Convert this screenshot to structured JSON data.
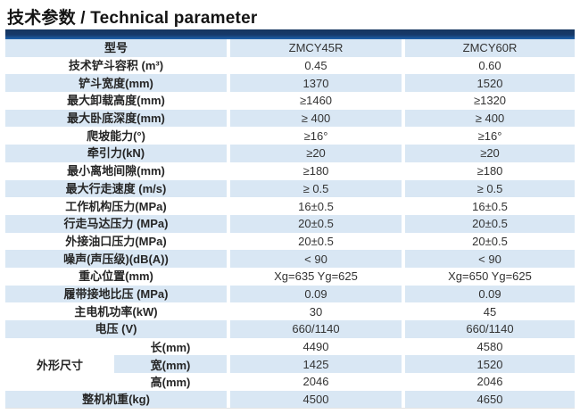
{
  "title": "技术参数 / Technical parameter",
  "colors": {
    "header_bar_navy": "#15355f",
    "header_bar_blue": "#1e63ae",
    "row_shade_blue": "#d9e7f4",
    "text": "#333333"
  },
  "table": {
    "header": {
      "model_label": "型号",
      "col1": "ZMCY45R",
      "col2": "ZMCY60R"
    },
    "rows": [
      {
        "label": "技术铲斗容积 (m³)",
        "v1": "0.45",
        "v2": "0.60"
      },
      {
        "label": "铲斗宽度(mm)",
        "v1": "1370",
        "v2": "1520"
      },
      {
        "label": "最大卸载高度(mm)",
        "v1": "≥1460",
        "v2": "≥1320"
      },
      {
        "label": "最大卧底深度(mm)",
        "v1": "≥ 400",
        "v2": "≥ 400"
      },
      {
        "label": "爬坡能力(°)",
        "v1": "≥16°",
        "v2": "≥16°"
      },
      {
        "label": "牵引力(kN)",
        "v1": "≥20",
        "v2": "≥20"
      },
      {
        "label": "最小离地间隙(mm)",
        "v1": "≥180",
        "v2": "≥180"
      },
      {
        "label": "最大行走速度 (m/s)",
        "v1": "≥ 0.5",
        "v2": "≥ 0.5"
      },
      {
        "label": "工作机构压力(MPa)",
        "v1": "16±0.5",
        "v2": "16±0.5"
      },
      {
        "label": "行走马达压力 (MPa)",
        "v1": "20±0.5",
        "v2": "20±0.5"
      },
      {
        "label": "外接油口压力(MPa)",
        "v1": "20±0.5",
        "v2": "20±0.5"
      },
      {
        "label": "噪声(声压级)(dB(A))",
        "v1": "< 90",
        "v2": "< 90"
      },
      {
        "label": "重心位置(mm)",
        "v1": "Xg=635 Yg=625",
        "v2": "Xg=650 Yg=625"
      },
      {
        "label": "履带接地比压 (MPa)",
        "v1": "0.09",
        "v2": "0.09"
      },
      {
        "label": "主电机功率(kW)",
        "v1": "30",
        "v2": "45"
      },
      {
        "label": "电压 (V)",
        "v1": "660/1140",
        "v2": "660/1140"
      }
    ],
    "dimension_group": {
      "label": "外形尺寸",
      "rows": [
        {
          "label": "长(mm)",
          "v1": "4490",
          "v2": "4580"
        },
        {
          "label": "宽(mm)",
          "v1": "1425",
          "v2": "1520"
        },
        {
          "label": "高(mm)",
          "v1": "2046",
          "v2": "2046"
        }
      ]
    },
    "footer_row": {
      "label": "整机机重(kg)",
      "v1": "4500",
      "v2": "4650"
    }
  }
}
